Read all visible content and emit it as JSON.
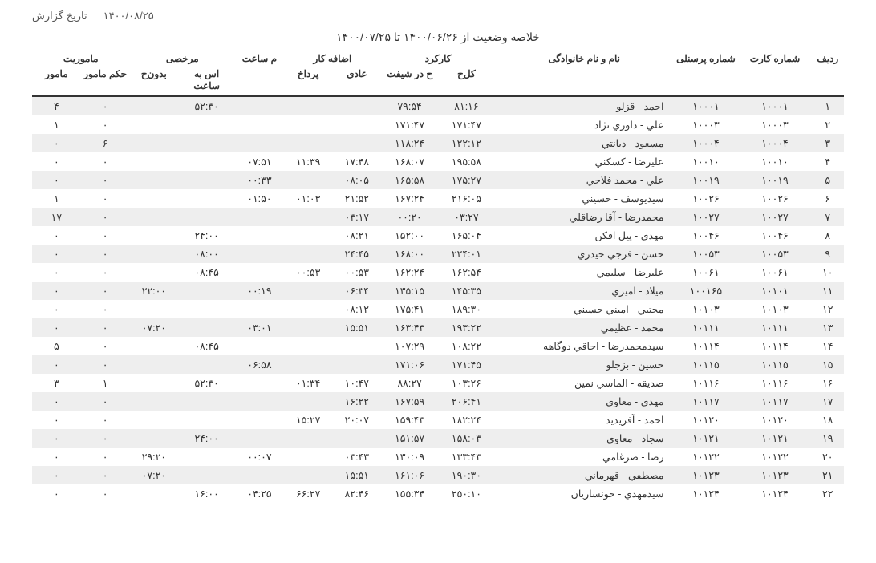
{
  "header": {
    "report_date_label": "تاریخ گزارش",
    "report_date": "۱۴۰۰/۰۸/۲۵",
    "title": "خلاصه وضعیت از ۱۴۰۰/۰۶/۲۶ تا ۱۴۰۰/۰۷/۲۵"
  },
  "columns": {
    "row": "ردیف",
    "card": "شماره کارت",
    "pers": "شماره پرسنلی",
    "name": "نام و نام خانوادگی",
    "work_group": "کارکرد",
    "kolh": "کل‌ح",
    "shift": "ح در شیفت",
    "ot_group": "اضافه کار",
    "adi": "عادی",
    "pard": "پرداخ",
    "msaat": "م ساعت",
    "leave_group": "مرخصی",
    "esbe": "اس به ساعت",
    "bedon": "بدون‌ح",
    "mission_group": "ماموریت",
    "hokm": "حکم مامور",
    "mamor": "مامور"
  },
  "rows": [
    {
      "row": "۱",
      "card": "۱۰۰۰۱",
      "pers": "۱۰۰۰۱",
      "name": "احمد - قزلو",
      "kolh": "۸۱:۱۶",
      "shift": "۷۹:۵۴",
      "adi": "",
      "pard": "",
      "msaat": "",
      "esbe": "۵۲:۳۰",
      "bedon": "",
      "hokm": "۰",
      "mamor": "۴"
    },
    {
      "row": "۲",
      "card": "۱۰۰۰۳",
      "pers": "۱۰۰۰۳",
      "name": "علي - داوري نژاد",
      "kolh": "۱۷۱:۴۷",
      "shift": "۱۷۱:۴۷",
      "adi": "",
      "pard": "",
      "msaat": "",
      "esbe": "",
      "bedon": "",
      "hokm": "۰",
      "mamor": "۱"
    },
    {
      "row": "۳",
      "card": "۱۰۰۰۴",
      "pers": "۱۰۰۰۴",
      "name": "مسعود - دیانتي",
      "kolh": "۱۲۲:۱۲",
      "shift": "۱۱۸:۲۴",
      "adi": "",
      "pard": "",
      "msaat": "",
      "esbe": "",
      "bedon": "",
      "hokm": "۶",
      "mamor": "۰"
    },
    {
      "row": "۴",
      "card": "۱۰۰۱۰",
      "pers": "۱۰۰۱۰",
      "name": "علیرضا - کسکني",
      "kolh": "۱۹۵:۵۸",
      "shift": "۱۶۸:۰۷",
      "adi": "۱۷:۴۸",
      "pard": "۱۱:۳۹",
      "msaat": "۰۷:۵۱",
      "esbe": "",
      "bedon": "",
      "hokm": "۰",
      "mamor": "۰"
    },
    {
      "row": "۵",
      "card": "۱۰۰۱۹",
      "pers": "۱۰۰۱۹",
      "name": "علي - محمد فلاحي",
      "kolh": "۱۷۵:۲۷",
      "shift": "۱۶۵:۵۸",
      "adi": "۰۸:۰۵",
      "pard": "",
      "msaat": "۰۰:۳۳",
      "esbe": "",
      "bedon": "",
      "hokm": "۰",
      "mamor": "۰"
    },
    {
      "row": "۶",
      "card": "۱۰۰۲۶",
      "pers": "۱۰۰۲۶",
      "name": "سیدیوسف - حسیني",
      "kolh": "۲۱۶:۰۵",
      "shift": "۱۶۷:۲۴",
      "adi": "۲۱:۵۲",
      "pard": "۰۱:۰۳",
      "msaat": "۰۱:۵۰",
      "esbe": "",
      "bedon": "",
      "hokm": "۰",
      "mamor": "۱"
    },
    {
      "row": "۷",
      "card": "۱۰۰۲۷",
      "pers": "۱۰۰۲۷",
      "name": "محمدرضا - آقا رضاقلي",
      "kolh": "۰۳:۲۷",
      "shift": "۰۰:۲۰",
      "adi": "۰۳:۱۷",
      "pard": "",
      "msaat": "",
      "esbe": "",
      "bedon": "",
      "hokm": "۰",
      "mamor": "۱۷"
    },
    {
      "row": "۸",
      "card": "۱۰۰۴۶",
      "pers": "۱۰۰۴۶",
      "name": "مهدي - پیل افکن",
      "kolh": "۱۶۵:۰۴",
      "shift": "۱۵۲:۰۰",
      "adi": "۰۸:۲۱",
      "pard": "",
      "msaat": "",
      "esbe": "۲۴:۰۰",
      "bedon": "",
      "hokm": "۰",
      "mamor": "۰"
    },
    {
      "row": "۹",
      "card": "۱۰۰۵۳",
      "pers": "۱۰۰۵۳",
      "name": "حسن - فرجي حیدري",
      "kolh": "۲۲۴:۰۱",
      "shift": "۱۶۸:۰۰",
      "adi": "۲۴:۴۵",
      "pard": "",
      "msaat": "",
      "esbe": "۰۸:۰۰",
      "bedon": "",
      "hokm": "۰",
      "mamor": "۰"
    },
    {
      "row": "۱۰",
      "card": "۱۰۰۶۱",
      "pers": "۱۰۰۶۱",
      "name": "علیرضا - سلیمي",
      "kolh": "۱۶۲:۵۴",
      "shift": "۱۶۲:۲۴",
      "adi": "۰۰:۵۳",
      "pard": "۰۰:۵۳",
      "msaat": "",
      "esbe": "۰۸:۴۵",
      "bedon": "",
      "hokm": "۰",
      "mamor": "۰"
    },
    {
      "row": "۱۱",
      "card": "۱۰۱۰۱",
      "pers": "۱۰۰۱۶۵",
      "name": "میلاد - امیري",
      "kolh": "۱۴۵:۳۵",
      "shift": "۱۳۵:۱۵",
      "adi": "۰۶:۳۴",
      "pard": "",
      "msaat": "۰۰:۱۹",
      "esbe": "",
      "bedon": "۲۲:۰۰",
      "hokm": "۰",
      "mamor": "۰"
    },
    {
      "row": "۱۲",
      "card": "۱۰۱۰۳",
      "pers": "۱۰۱۰۳",
      "name": "مجتبي - امیني حسیني",
      "kolh": "۱۸۹:۳۰",
      "shift": "۱۷۵:۴۱",
      "adi": "۰۸:۱۲",
      "pard": "",
      "msaat": "",
      "esbe": "",
      "bedon": "",
      "hokm": "۰",
      "mamor": "۰"
    },
    {
      "row": "۱۳",
      "card": "۱۰۱۱۱",
      "pers": "۱۰۱۱۱",
      "name": "محمد - عظیمي",
      "kolh": "۱۹۳:۲۲",
      "shift": "۱۶۳:۴۳",
      "adi": "۱۵:۵۱",
      "pard": "",
      "msaat": "۰۳:۰۱",
      "esbe": "",
      "bedon": "۰۷:۲۰",
      "hokm": "۰",
      "mamor": "۰"
    },
    {
      "row": "۱۴",
      "card": "۱۰۱۱۴",
      "pers": "۱۰۱۱۴",
      "name": "سیدمحمدرضا - احاقي دوگاهه",
      "kolh": "۱۰۸:۲۲",
      "shift": "۱۰۷:۲۹",
      "adi": "",
      "pard": "",
      "msaat": "",
      "esbe": "۰۸:۴۵",
      "bedon": "",
      "hokm": "۰",
      "mamor": "۵"
    },
    {
      "row": "۱۵",
      "card": "۱۰۱۱۵",
      "pers": "۱۰۱۱۵",
      "name": "حسین - بزجلو",
      "kolh": "۱۷۱:۴۵",
      "shift": "۱۷۱:۰۶",
      "adi": "",
      "pard": "",
      "msaat": "۰۶:۵۸",
      "esbe": "",
      "bedon": "",
      "hokm": "۰",
      "mamor": "۰"
    },
    {
      "row": "۱۶",
      "card": "۱۰۱۱۶",
      "pers": "۱۰۱۱۶",
      "name": "صدیقه - الماسي نمین",
      "kolh": "۱۰۳:۲۶",
      "shift": "۸۸:۲۷",
      "adi": "۱۰:۴۷",
      "pard": "۰۱:۳۴",
      "msaat": "",
      "esbe": "۵۲:۳۰",
      "bedon": "",
      "hokm": "۱",
      "mamor": "۳"
    },
    {
      "row": "۱۷",
      "card": "۱۰۱۱۷",
      "pers": "۱۰۱۱۷",
      "name": "مهدي - معاوي",
      "kolh": "۲۰۶:۴۱",
      "shift": "۱۶۷:۵۹",
      "adi": "۱۶:۲۲",
      "pard": "",
      "msaat": "",
      "esbe": "",
      "bedon": "",
      "hokm": "۰",
      "mamor": "۰"
    },
    {
      "row": "۱۸",
      "card": "۱۰۱۲۰",
      "pers": "۱۰۱۲۰",
      "name": "احمد - آفریدید",
      "kolh": "۱۸۲:۲۴",
      "shift": "۱۵۹:۴۳",
      "adi": "۲۰:۰۷",
      "pard": "۱۵:۲۷",
      "msaat": "",
      "esbe": "",
      "bedon": "",
      "hokm": "۰",
      "mamor": "۰"
    },
    {
      "row": "۱۹",
      "card": "۱۰۱۲۱",
      "pers": "۱۰۱۲۱",
      "name": "سجاد - معاوي",
      "kolh": "۱۵۸:۰۳",
      "shift": "۱۵۱:۵۷",
      "adi": "",
      "pard": "",
      "msaat": "",
      "esbe": "۲۴:۰۰",
      "bedon": "",
      "hokm": "۰",
      "mamor": "۰"
    },
    {
      "row": "۲۰",
      "card": "۱۰۱۲۲",
      "pers": "۱۰۱۲۲",
      "name": "رضا - ضرغامي",
      "kolh": "۱۳۳:۴۳",
      "shift": "۱۳۰:۰۹",
      "adi": "۰۳:۴۳",
      "pard": "",
      "msaat": "۰۰:۰۷",
      "esbe": "",
      "bedon": "۲۹:۲۰",
      "hokm": "۰",
      "mamor": "۰"
    },
    {
      "row": "۲۱",
      "card": "۱۰۱۲۳",
      "pers": "۱۰۱۲۳",
      "name": "مصطفي - قهرماني",
      "kolh": "۱۹۰:۳۰",
      "shift": "۱۶۱:۰۶",
      "adi": "۱۵:۵۱",
      "pard": "",
      "msaat": "",
      "esbe": "",
      "bedon": "۰۷:۲۰",
      "hokm": "۰",
      "mamor": "۰"
    },
    {
      "row": "۲۲",
      "card": "۱۰۱۲۴",
      "pers": "۱۰۱۲۴",
      "name": "سیدمهدي - خونساریان",
      "kolh": "۲۵۰:۱۰",
      "shift": "۱۵۵:۳۴",
      "adi": "۸۲:۴۶",
      "pard": "۶۶:۲۷",
      "msaat": "۰۴:۲۵",
      "esbe": "۱۶:۰۰",
      "bedon": "",
      "hokm": "۰",
      "mamor": "۰"
    }
  ]
}
